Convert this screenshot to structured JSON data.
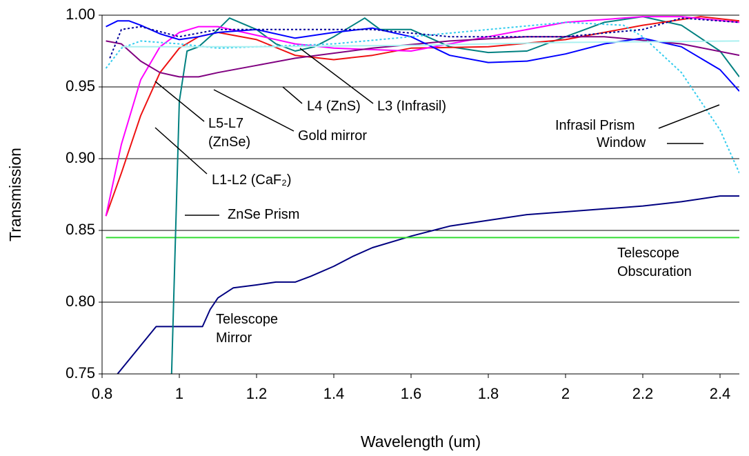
{
  "chart_data": {
    "type": "line",
    "x_label": "Wavelength (um)",
    "y_label": "Transmission",
    "xlim": [
      0.8,
      2.45
    ],
    "ylim": [
      0.75,
      1.0
    ],
    "xticks": [
      0.8,
      1,
      1.2,
      1.4,
      1.6,
      1.8,
      2,
      2.2,
      2.4
    ],
    "yticks": [
      {
        "value": 0.75,
        "label": "0.75"
      },
      {
        "value": 0.8,
        "label": "0.80"
      },
      0.85,
      {
        "value": 0.9,
        "label": "0.90"
      },
      0.95,
      {
        "value": 1.0,
        "label": "1.00"
      }
    ],
    "grid": true,
    "series": [
      {
        "name": "Telescope Mirror",
        "color": "#000080",
        "dash": false,
        "x": [
          0.84,
          0.94,
          1.06,
          1.08,
          1.1,
          1.14,
          1.2,
          1.25,
          1.3,
          1.34,
          1.4,
          1.45,
          1.5,
          1.6,
          1.7,
          1.8,
          1.9,
          2.0,
          2.1,
          2.2,
          2.3,
          2.4,
          2.45
        ],
        "values": [
          0.75,
          0.783,
          0.783,
          0.795,
          0.803,
          0.81,
          0.812,
          0.814,
          0.814,
          0.818,
          0.825,
          0.832,
          0.838,
          0.846,
          0.853,
          0.857,
          0.861,
          0.863,
          0.865,
          0.867,
          0.87,
          0.874,
          0.874
        ]
      },
      {
        "name": "Telescope Obscuration",
        "color": "#33dd33",
        "dash": false,
        "x": [
          0.81,
          2.45
        ],
        "values": [
          0.845,
          0.845
        ]
      },
      {
        "name": "ZnSe Prism",
        "color": "#008080",
        "dash": false,
        "x": [
          0.98,
          1.0,
          1.02,
          1.05,
          1.1,
          1.13,
          1.2,
          1.25,
          1.3,
          1.35,
          1.4,
          1.48,
          1.52,
          1.6,
          1.7,
          1.8,
          1.9,
          2.0,
          2.1,
          2.2,
          2.3,
          2.4,
          2.45
        ],
        "values": [
          0.75,
          0.94,
          0.975,
          0.978,
          0.99,
          0.998,
          0.99,
          0.98,
          0.975,
          0.978,
          0.985,
          0.998,
          0.99,
          0.99,
          0.978,
          0.974,
          0.975,
          0.985,
          0.995,
          0.999,
          0.993,
          0.975,
          0.957
        ]
      },
      {
        "name": "L1-L2 (CaF₂)",
        "color": "#ee1111",
        "dash": false,
        "x": [
          0.81,
          0.85,
          0.9,
          0.95,
          1.0,
          1.05,
          1.1,
          1.2,
          1.3,
          1.4,
          1.5,
          1.6,
          1.8,
          2.0,
          2.2,
          2.35,
          2.45
        ],
        "values": [
          0.86,
          0.89,
          0.93,
          0.96,
          0.977,
          0.985,
          0.988,
          0.983,
          0.972,
          0.969,
          0.972,
          0.977,
          0.978,
          0.983,
          0.993,
          0.999,
          0.996
        ]
      },
      {
        "name": "L5-L7 (ZnSe)",
        "color": "#ff00ff",
        "dash": false,
        "x": [
          0.81,
          0.85,
          0.9,
          0.95,
          1.0,
          1.05,
          1.1,
          1.2,
          1.3,
          1.4,
          1.6,
          1.8,
          2.0,
          2.2,
          2.3,
          2.45
        ],
        "values": [
          0.86,
          0.91,
          0.955,
          0.978,
          0.988,
          0.992,
          0.992,
          0.986,
          0.98,
          0.977,
          0.975,
          0.985,
          0.995,
          0.999,
          0.999,
          0.995
        ]
      },
      {
        "name": "L4 (ZnS)",
        "color": "#800080",
        "dash": false,
        "x": [
          0.81,
          0.85,
          0.9,
          0.95,
          1.0,
          1.05,
          1.1,
          1.2,
          1.3,
          1.5,
          1.7,
          1.9,
          2.1,
          2.3,
          2.45
        ],
        "values": [
          0.982,
          0.98,
          0.968,
          0.96,
          0.957,
          0.957,
          0.96,
          0.965,
          0.97,
          0.977,
          0.982,
          0.985,
          0.985,
          0.98,
          0.972
        ]
      },
      {
        "name": "Gold mirror",
        "color": "#0000ff",
        "dash": false,
        "x": [
          0.81,
          0.84,
          0.87,
          0.9,
          0.95,
          1.0,
          1.05,
          1.1,
          1.2,
          1.3,
          1.4,
          1.5,
          1.6,
          1.7,
          1.8,
          1.9,
          2.0,
          2.1,
          2.2,
          2.3,
          2.4,
          2.45
        ],
        "values": [
          0.992,
          0.996,
          0.996,
          0.993,
          0.987,
          0.983,
          0.985,
          0.988,
          0.99,
          0.984,
          0.988,
          0.991,
          0.985,
          0.972,
          0.967,
          0.968,
          0.973,
          0.98,
          0.984,
          0.978,
          0.962,
          0.947
        ]
      },
      {
        "name": "L3 (Infrasil)",
        "color": "#000099",
        "dash": true,
        "x": [
          0.82,
          0.85,
          0.9,
          1.0,
          1.1,
          1.2,
          1.5,
          1.7,
          2.0,
          2.2,
          2.3,
          2.45
        ],
        "values": [
          0.97,
          0.99,
          0.992,
          0.985,
          0.99,
          0.99,
          0.99,
          0.985,
          0.985,
          0.99,
          0.998,
          0.995
        ]
      },
      {
        "name": "Window",
        "color": "#33ccee",
        "dash": true,
        "x": [
          0.81,
          0.85,
          0.9,
          1.0,
          1.1,
          1.2,
          1.4,
          1.6,
          1.8,
          2.0,
          2.15,
          2.2,
          2.3,
          2.4,
          2.45
        ],
        "values": [
          0.963,
          0.977,
          0.982,
          0.98,
          0.977,
          0.978,
          0.98,
          0.985,
          0.99,
          0.995,
          0.993,
          0.985,
          0.96,
          0.92,
          0.89
        ]
      },
      {
        "name": "Infrasil Prism",
        "color": "#aaf0f0",
        "dash": false,
        "x": [
          0.85,
          1.2,
          1.6,
          2.0,
          2.45
        ],
        "values": [
          0.978,
          0.978,
          0.979,
          0.981,
          0.982
        ]
      }
    ]
  }
}
